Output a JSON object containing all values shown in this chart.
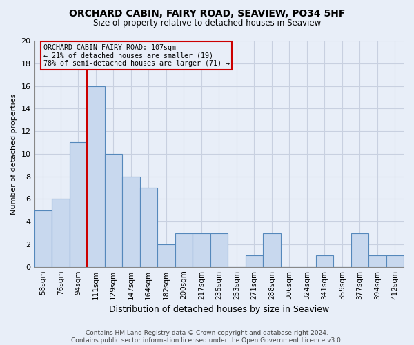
{
  "title": "ORCHARD CABIN, FAIRY ROAD, SEAVIEW, PO34 5HF",
  "subtitle": "Size of property relative to detached houses in Seaview",
  "xlabel": "Distribution of detached houses by size in Seaview",
  "ylabel": "Number of detached properties",
  "footer_line1": "Contains HM Land Registry data © Crown copyright and database right 2024.",
  "footer_line2": "Contains public sector information licensed under the Open Government Licence v3.0.",
  "bin_labels": [
    "58sqm",
    "76sqm",
    "94sqm",
    "111sqm",
    "129sqm",
    "147sqm",
    "164sqm",
    "182sqm",
    "200sqm",
    "217sqm",
    "235sqm",
    "253sqm",
    "271sqm",
    "288sqm",
    "306sqm",
    "324sqm",
    "341sqm",
    "359sqm",
    "377sqm",
    "394sqm",
    "412sqm"
  ],
  "bar_heights": [
    5,
    6,
    11,
    16,
    10,
    8,
    7,
    2,
    3,
    3,
    3,
    0,
    1,
    3,
    0,
    0,
    1,
    0,
    3,
    1,
    1
  ],
  "bar_color": "#c8d8ee",
  "bar_edge_color": "#5588bb",
  "ylim": [
    0,
    20
  ],
  "yticks": [
    0,
    2,
    4,
    6,
    8,
    10,
    12,
    14,
    16,
    18,
    20
  ],
  "vline_x": 2.5,
  "annotation_text_line1": "ORCHARD CABIN FAIRY ROAD: 107sqm",
  "annotation_text_line2": "← 21% of detached houses are smaller (19)",
  "annotation_text_line3": "78% of semi-detached houses are larger (71) →",
  "annotation_box_color": "#cc0000",
  "background_color": "#e8eef8",
  "grid_color": "#c8d0e0"
}
